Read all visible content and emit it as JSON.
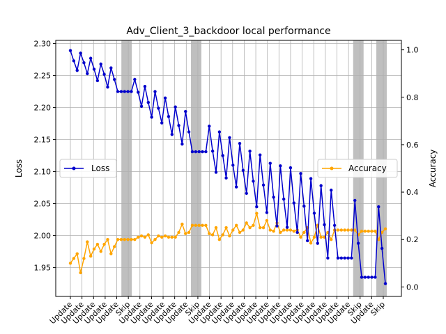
{
  "chart_data": {
    "type": "line",
    "title": "Adv_Client_3_backdoor local performance",
    "ylabel_left": "Loss",
    "ylabel_right": "Accuracy",
    "ylim_left": [
      1.905,
      2.305
    ],
    "ylim_right": [
      -0.04,
      1.04
    ],
    "yticks_left": [
      "1.95",
      "2.00",
      "2.05",
      "2.10",
      "2.15",
      "2.20",
      "2.25",
      "2.30"
    ],
    "yticks_right": [
      "0.0",
      "0.2",
      "0.4",
      "0.6",
      "0.8",
      "1.0"
    ],
    "grid": true,
    "legend_left": {
      "placement": "center-left",
      "label": "Loss"
    },
    "legend_right": {
      "placement": "center-right",
      "label": "Accuracy"
    },
    "x_tick_labels": [
      "Update",
      "Update",
      "Update",
      "Update",
      "Update",
      "Skip",
      "Update",
      "Update",
      "Update",
      "Update",
      "Update",
      "Skip",
      "Update",
      "Update",
      "Update",
      "Update",
      "Update",
      "Update",
      "Update",
      "Update",
      "Update",
      "Update",
      "Update",
      "Update",
      "Update",
      "Skip",
      "Update",
      "Skip"
    ],
    "skip_rounds": [
      5,
      11,
      25,
      27
    ],
    "colors": {
      "loss": "#0000cc",
      "accuracy": "#ffa500",
      "skip_band": "#808080",
      "grid": "#b0b0b0"
    },
    "series": [
      {
        "name": "Loss",
        "values": [
          2.289,
          2.273,
          2.258,
          2.285,
          2.27,
          2.253,
          2.277,
          2.26,
          2.242,
          2.268,
          2.252,
          2.232,
          2.262,
          2.244,
          2.225,
          2.225,
          2.225,
          2.225,
          2.225,
          2.244,
          2.224,
          2.202,
          2.233,
          2.208,
          2.185,
          2.225,
          2.199,
          2.176,
          2.215,
          2.186,
          2.158,
          2.201,
          2.172,
          2.143,
          2.194,
          2.162,
          2.131,
          2.131,
          2.131,
          2.131,
          2.131,
          2.171,
          2.132,
          2.099,
          2.162,
          2.125,
          2.09,
          2.153,
          2.11,
          2.076,
          2.144,
          2.102,
          2.066,
          2.132,
          2.085,
          2.045,
          2.126,
          2.079,
          2.036,
          2.113,
          2.06,
          2.015,
          2.109,
          2.057,
          2.013,
          2.106,
          2.051,
          2.005,
          2.097,
          2.046,
          1.992,
          2.089,
          2.035,
          1.988,
          2.078,
          2.017,
          1.965,
          2.071,
          2.016,
          1.965,
          1.965,
          1.965,
          1.965,
          1.965,
          2.055,
          1.988,
          1.935,
          1.935,
          1.935,
          1.935,
          1.935,
          2.045,
          1.98,
          1.925
        ]
      },
      {
        "name": "Accuracy",
        "values": [
          0.1,
          0.12,
          0.14,
          0.06,
          0.12,
          0.19,
          0.13,
          0.16,
          0.18,
          0.15,
          0.18,
          0.2,
          0.14,
          0.17,
          0.2,
          0.2,
          0.2,
          0.2,
          0.2,
          0.2,
          0.21,
          0.215,
          0.21,
          0.22,
          0.186,
          0.2,
          0.215,
          0.21,
          0.215,
          0.21,
          0.21,
          0.21,
          0.23,
          0.265,
          0.225,
          0.23,
          0.26,
          0.26,
          0.26,
          0.26,
          0.26,
          0.225,
          0.22,
          0.25,
          0.2,
          0.22,
          0.25,
          0.215,
          0.24,
          0.26,
          0.23,
          0.24,
          0.27,
          0.25,
          0.26,
          0.31,
          0.25,
          0.25,
          0.28,
          0.24,
          0.235,
          0.27,
          0.23,
          0.24,
          0.24,
          0.24,
          0.235,
          0.24,
          0.21,
          0.23,
          0.25,
          0.185,
          0.21,
          0.26,
          0.21,
          0.21,
          0.23,
          0.2,
          0.24,
          0.24,
          0.24,
          0.24,
          0.24,
          0.24,
          0.24,
          0.22,
          0.235,
          0.235,
          0.235,
          0.235,
          0.235,
          0.2,
          0.23,
          0.245
        ]
      }
    ]
  }
}
